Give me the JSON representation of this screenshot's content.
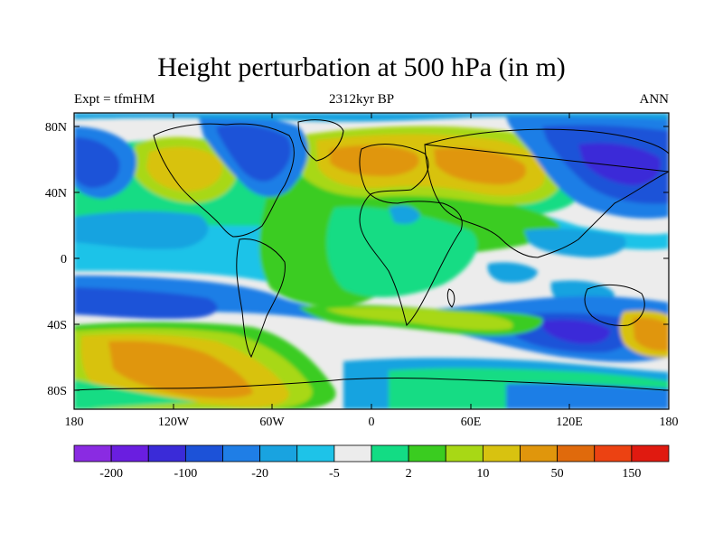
{
  "title": "Height perturbation at 500 hPa (in m)",
  "subtitle_left": "Expt = tfmHM",
  "subtitle_center": "2312kyr BP",
  "subtitle_right": "ANN",
  "lat_labels": [
    "80N",
    "40N",
    "0",
    "40S",
    "80S"
  ],
  "lon_labels": [
    "180",
    "120W",
    "60W",
    "0",
    "60E",
    "120E",
    "180"
  ],
  "colorbar": {
    "colors": [
      "#8a2be2",
      "#6a1ee0",
      "#3a2bd8",
      "#1c52d8",
      "#1f7ee6",
      "#19a3e0",
      "#1ec3e8",
      "#ececec",
      "#13dc84",
      "#3acc20",
      "#a8d815",
      "#d8c210",
      "#e0960c",
      "#e06a0c",
      "#ec4212",
      "#e01a10"
    ],
    "labels": [
      "-200",
      "-100",
      "-20",
      "-5",
      "2",
      "10",
      "50",
      "150"
    ]
  }
}
